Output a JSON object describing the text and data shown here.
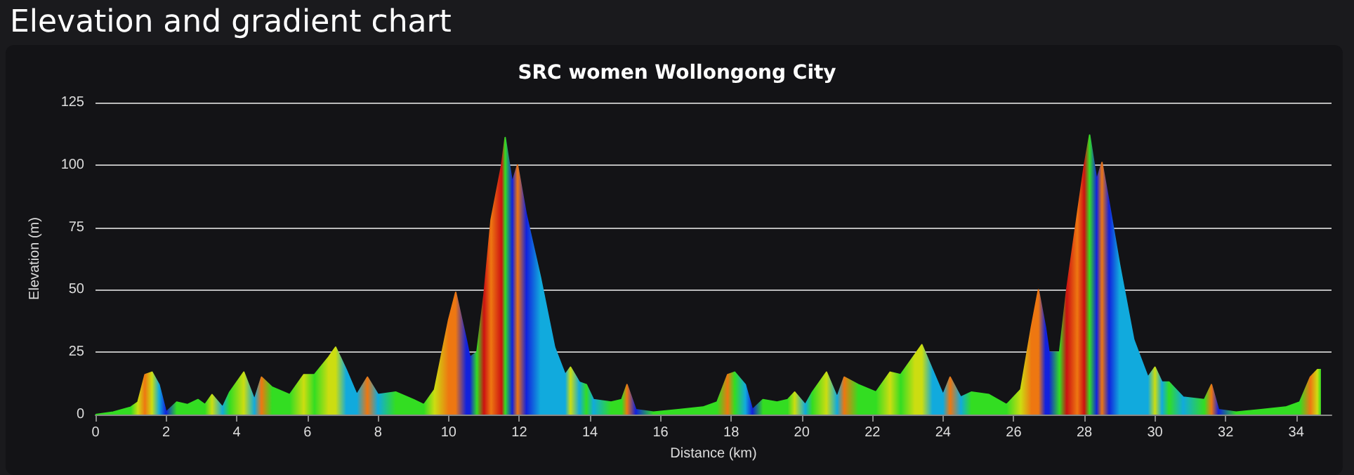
{
  "chart_data": {
    "type": "area",
    "title": "Elevation and gradient chart",
    "subtitle": "SRC women Wollongong City",
    "xlabel": "Distance (km)",
    "ylabel": "Elevation (m)",
    "x": [
      0,
      0.5,
      1.0,
      1.2,
      1.4,
      1.6,
      1.8,
      2.0,
      2.3,
      2.6,
      2.9,
      3.1,
      3.3,
      3.6,
      3.8,
      4.2,
      4.5,
      4.7,
      5.0,
      5.5,
      5.9,
      6.2,
      6.6,
      6.8,
      7.1,
      7.4,
      7.7,
      8.0,
      8.5,
      9.0,
      9.3,
      9.6,
      10.0,
      10.2,
      10.5,
      10.6,
      10.8,
      11.0,
      11.2,
      11.5,
      11.6,
      11.8,
      11.95,
      12.2,
      12.6,
      13.0,
      13.3,
      13.45,
      13.7,
      13.9,
      14.1,
      14.6,
      14.9,
      15.05,
      15.3,
      15.8,
      16.5,
      17.2,
      17.6,
      17.9,
      18.1,
      18.4,
      18.6,
      18.9,
      19.3,
      19.6,
      19.8,
      20.1,
      20.3,
      20.7,
      21.0,
      21.2,
      21.6,
      22.1,
      22.5,
      22.8,
      23.2,
      23.4,
      23.7,
      24.0,
      24.2,
      24.5,
      24.8,
      25.3,
      25.8,
      26.2,
      26.5,
      26.7,
      26.9,
      27.0,
      27.3,
      27.5,
      27.8,
      28.0,
      28.15,
      28.35,
      28.5,
      28.7,
      29.0,
      29.4,
      29.8,
      30.0,
      30.2,
      30.4,
      30.8,
      31.4,
      31.6,
      31.8,
      32.3,
      33.0,
      33.7,
      34.1,
      34.4,
      34.6,
      34.7
    ],
    "values": [
      0,
      1,
      3,
      5,
      16,
      17,
      12,
      1,
      5,
      4,
      6,
      4,
      8,
      3,
      9,
      17,
      6,
      15,
      11,
      8,
      16,
      16,
      23,
      27,
      18,
      8,
      15,
      8,
      9,
      6,
      4,
      10,
      38,
      49,
      30,
      23,
      25,
      48,
      78,
      100,
      111,
      93,
      100,
      80,
      55,
      27,
      16,
      19,
      13,
      12,
      6,
      5,
      6,
      12,
      2,
      1,
      2,
      3,
      5,
      16,
      17,
      12,
      2,
      6,
      5,
      6,
      9,
      4,
      9,
      17,
      7,
      15,
      12,
      9,
      17,
      16,
      24,
      28,
      18,
      8,
      15,
      7,
      9,
      8,
      4,
      10,
      35,
      50,
      35,
      25,
      25,
      50,
      80,
      100,
      112,
      94,
      101,
      85,
      60,
      30,
      15,
      19,
      13,
      13,
      7,
      6,
      12,
      2,
      1,
      2,
      3,
      5,
      15,
      18,
      18
    ],
    "colors": [
      "#33dd22",
      "#33dd22",
      "#33dd22",
      "#ccdd11",
      "#ee7711",
      "#ccdd11",
      "#11aadd",
      "#1122dd",
      "#33dd22",
      "#33dd22",
      "#33dd22",
      "#33dd22",
      "#ccdd11",
      "#11aadd",
      "#33dd22",
      "#ccdd11",
      "#11aadd",
      "#ee7711",
      "#33dd22",
      "#33dd22",
      "#ccdd11",
      "#33dd22",
      "#ccdd11",
      "#ccdd11",
      "#11aadd",
      "#11aadd",
      "#ee7711",
      "#11aadd",
      "#33dd22",
      "#33dd22",
      "#33dd22",
      "#ccdd11",
      "#ee7711",
      "#ee7711",
      "#1122dd",
      "#1122dd",
      "#33dd22",
      "#cc1111",
      "#ee7711",
      "#cc1111",
      "#33dd22",
      "#1122dd",
      "#ee7711",
      "#1122dd",
      "#11aadd",
      "#11aadd",
      "#11aadd",
      "#ccdd11",
      "#11aadd",
      "#33dd22",
      "#11aadd",
      "#33dd22",
      "#33dd22",
      "#ee7711",
      "#1122dd",
      "#33dd22",
      "#33dd22",
      "#33dd22",
      "#33dd22",
      "#ee7711",
      "#33dd22",
      "#11aadd",
      "#1122dd",
      "#33dd22",
      "#33dd22",
      "#33dd22",
      "#ccdd11",
      "#11aadd",
      "#33dd22",
      "#ccdd11",
      "#11aadd",
      "#ee7711",
      "#33dd22",
      "#33dd22",
      "#ccdd11",
      "#33dd22",
      "#ccdd11",
      "#ccdd11",
      "#11aadd",
      "#11aadd",
      "#ee7711",
      "#11aadd",
      "#33dd22",
      "#33dd22",
      "#33dd22",
      "#ccdd11",
      "#ee7711",
      "#ee7711",
      "#1122dd",
      "#1122dd",
      "#33dd22",
      "#cc1111",
      "#ee7711",
      "#cc1111",
      "#33dd22",
      "#1122dd",
      "#ee7711",
      "#1122dd",
      "#11aadd",
      "#11aadd",
      "#11aadd",
      "#ccdd11",
      "#11aadd",
      "#33dd22",
      "#11aadd",
      "#33dd22",
      "#ee7711",
      "#1122dd",
      "#33dd22",
      "#33dd22",
      "#33dd22",
      "#33dd22",
      "#ee7711",
      "#ccdd11",
      "#33dd22"
    ],
    "xlim": [
      0,
      35
    ],
    "xticks": [
      0,
      2,
      4,
      6,
      8,
      10,
      12,
      14,
      16,
      18,
      20,
      22,
      24,
      26,
      28,
      30,
      32,
      34
    ],
    "ylim": [
      0,
      125
    ],
    "yticks": [
      0,
      25,
      50,
      75,
      100,
      125
    ],
    "grid": "y",
    "marker": "none"
  }
}
